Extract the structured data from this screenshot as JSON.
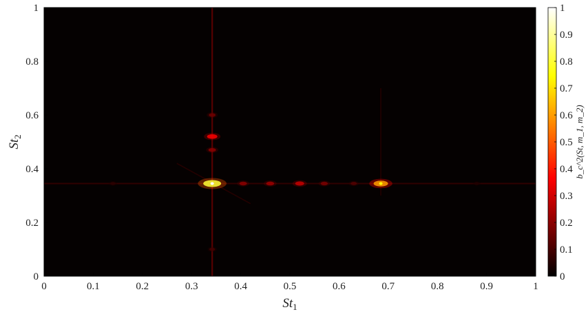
{
  "chart_data": {
    "type": "heatmap",
    "xlabel": "St",
    "xlabel_sub": "1",
    "ylabel": "St",
    "ylabel_sub": "2",
    "colorbar_label": "b_c^2(St, m_1, m_2)",
    "xlim": [
      0,
      1
    ],
    "ylim": [
      0,
      1
    ],
    "xticks": [
      "0",
      "0.1",
      "0.2",
      "0.3",
      "0.4",
      "0.5",
      "0.6",
      "0.7",
      "0.8",
      "0.9",
      "1"
    ],
    "yticks": [
      "0",
      "0.2",
      "0.4",
      "0.6",
      "0.8",
      "1"
    ],
    "colorbar_ticks": [
      "0",
      "0.1",
      "0.2",
      "0.3",
      "0.4",
      "0.5",
      "0.6",
      "0.7",
      "0.8",
      "0.9",
      "1"
    ],
    "colorbar_range": [
      0,
      1
    ],
    "colormap": "hot",
    "background_value": 0.02,
    "horizontal_ridge": {
      "y": 0.345,
      "x_range": [
        0.0,
        1.0
      ],
      "peak_value": 0.12
    },
    "vertical_ridges": [
      {
        "x": 0.342,
        "y_range": [
          0.0,
          1.0
        ],
        "peak_value": 0.2
      },
      {
        "x": 0.685,
        "y_range": [
          0.3,
          0.7
        ],
        "peak_value": 0.06
      }
    ],
    "diagonal_streaks": [
      {
        "from": [
          0.27,
          0.42
        ],
        "to": [
          0.42,
          0.27
        ],
        "value": 0.08
      }
    ],
    "peaks": [
      {
        "x": 0.342,
        "y": 0.345,
        "value": 1.0
      },
      {
        "x": 0.342,
        "y": 0.52,
        "value": 0.45
      },
      {
        "x": 0.342,
        "y": 0.47,
        "value": 0.25
      },
      {
        "x": 0.342,
        "y": 0.6,
        "value": 0.2
      },
      {
        "x": 0.342,
        "y": 0.1,
        "value": 0.12
      },
      {
        "x": 0.685,
        "y": 0.345,
        "value": 0.75
      },
      {
        "x": 0.52,
        "y": 0.345,
        "value": 0.35
      },
      {
        "x": 0.46,
        "y": 0.345,
        "value": 0.28
      },
      {
        "x": 0.405,
        "y": 0.345,
        "value": 0.25
      },
      {
        "x": 0.57,
        "y": 0.345,
        "value": 0.22
      },
      {
        "x": 0.63,
        "y": 0.345,
        "value": 0.15
      },
      {
        "x": 0.14,
        "y": 0.345,
        "value": 0.08
      },
      {
        "x": 0.88,
        "y": 0.345,
        "value": 0.06
      }
    ]
  }
}
